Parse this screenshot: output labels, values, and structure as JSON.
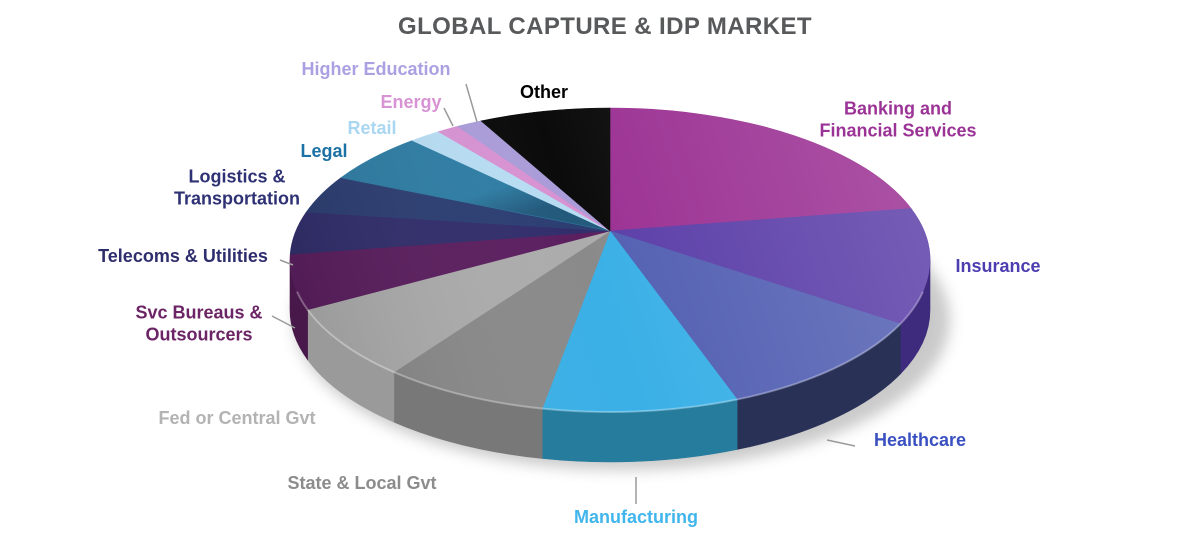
{
  "title": "GLOBAL CAPTURE & IDP MARKET",
  "title_color": "#58595B",
  "background": "#FFFFFF",
  "chart_data": {
    "type": "pie",
    "style": "3d",
    "start_angle_deg": -90,
    "direction": "clockwise",
    "legend_position": "labels-around-pie",
    "note": "No numeric data labels are shown in the image; values are percent shares estimated from slice angles.",
    "slices": [
      {
        "id": "banking",
        "label": "Banking and\nFinancial Services",
        "value": 19.5,
        "color": "#9B3193",
        "side_color": "#6F2168",
        "label_color": "#9B3397",
        "leader_line": false
      },
      {
        "id": "insurance",
        "label": "Insurance",
        "value": 12.4,
        "color": "#5B3EA8",
        "side_color": "#3F2B7D",
        "label_color": "#4C3EB1",
        "leader_line": false
      },
      {
        "id": "healthcare",
        "label": "Healthcare",
        "value": 11.6,
        "color": "#5360B2",
        "side_color": "#293157",
        "label_color": "#3A50C0",
        "leader_line": true
      },
      {
        "id": "manufacturing",
        "label": "Manufacturing",
        "value": 9.9,
        "color": "#3AB0E6",
        "side_color": "#267C9C",
        "label_color": "#41B6EC",
        "leader_line": true
      },
      {
        "id": "state_gvt",
        "label": "State & Local Gvt",
        "value": 8.4,
        "color": "#8A8A8A",
        "side_color": "#787878",
        "label_color": "#8C8C8C",
        "leader_line": false
      },
      {
        "id": "fed_gvt",
        "label": "Fed or Central Gvt",
        "value": 7.9,
        "color": "#ACACAC",
        "side_color": "#9A9A9A",
        "label_color": "#B3B3B3",
        "leader_line": false
      },
      {
        "id": "svc_bureaus",
        "label": "Svc Bureaus &\nOutsourcers",
        "value": 5.9,
        "color": "#5B1F5F",
        "side_color": "#471849",
        "label_color": "#6B2465",
        "leader_line": true
      },
      {
        "id": "telecoms",
        "label": "Telecoms & Utilities",
        "value": 4.5,
        "color": "#322E6C",
        "label_color": "#2E2E6E",
        "leader_line": true
      },
      {
        "id": "logistics",
        "label": "Logistics &\nTransportation",
        "value": 4.0,
        "color": "#2C3E72",
        "label_color": "#2E3173",
        "leader_line": false
      },
      {
        "id": "legal",
        "label": "Legal",
        "value": 5.3,
        "color": "#2F7DA4",
        "color2": "#235A7C",
        "label_color": "#1B72A4",
        "leader_line": false
      },
      {
        "id": "retail",
        "label": "Retail",
        "value": 1.6,
        "color": "#B7DCF2",
        "label_color": "#A9D6F0",
        "leader_line": false
      },
      {
        "id": "energy",
        "label": "Energy",
        "value": 1.1,
        "color": "#D792D2",
        "label_color": "#D893D4",
        "leader_line": true
      },
      {
        "id": "higher_education",
        "label": "Higher Education",
        "value": 1.3,
        "color": "#A99CD8",
        "label_color": "#ABA0E2",
        "leader_line": true
      },
      {
        "id": "other",
        "label": "Other",
        "value": 6.6,
        "color": "#0B0B0B",
        "label_color": "#000000",
        "leader_line": false
      }
    ]
  }
}
